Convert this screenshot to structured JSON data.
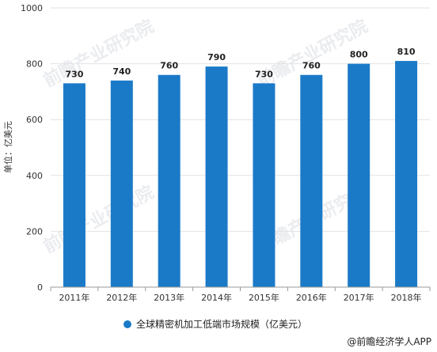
{
  "chart_data": {
    "type": "bar",
    "categories": [
      "2011年",
      "2012年",
      "2013年",
      "2014年",
      "2015年",
      "2016年",
      "2017年",
      "2018年"
    ],
    "values": [
      730,
      740,
      760,
      790,
      730,
      760,
      800,
      810
    ],
    "ylabel": "单位：亿美元",
    "ylim": [
      0,
      1000
    ],
    "yticks": [
      0,
      200,
      400,
      600,
      800,
      1000
    ],
    "grid": true,
    "legend": "bottom-center",
    "series": [
      {
        "name": "全球精密机加工低端市场规模（亿美元）",
        "values": [
          730,
          740,
          760,
          790,
          730,
          760,
          800,
          810
        ]
      }
    ],
    "colors": {
      "bar": "#1b7ac8",
      "grid": "#e2e2e2",
      "axis": "#999999"
    }
  },
  "source_text": "@前瞻经济学人APP",
  "watermark": "前瞻产业研究院"
}
